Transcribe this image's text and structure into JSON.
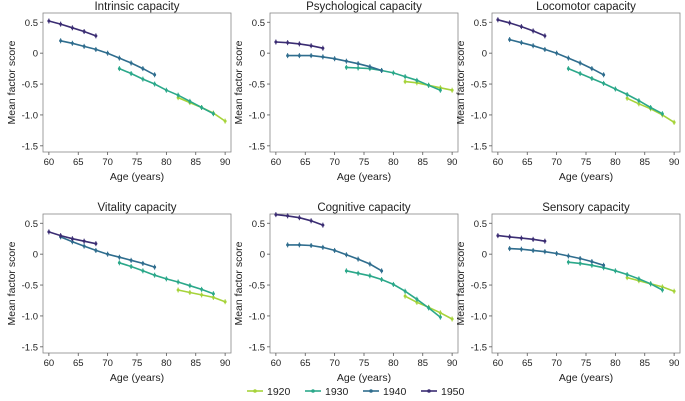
{
  "chart_data": {
    "type": "line",
    "xlabel": "Age (years)",
    "ylabel": "Mean factor score",
    "xlim": [
      59,
      91
    ],
    "ylim": [
      -1.6,
      0.65
    ],
    "xticks": [
      "60",
      "65",
      "70",
      "75",
      "80",
      "85",
      "90"
    ],
    "yticks": [
      "0.5",
      "0",
      "-0.5",
      "-1.0",
      "-1.5"
    ],
    "legend": {
      "position": "bottom",
      "entries": [
        {
          "name": "1920",
          "color": "#a6d33a"
        },
        {
          "name": "1930",
          "color": "#2ba88a"
        },
        {
          "name": "1940",
          "color": "#2f6d8e"
        },
        {
          "name": "1950",
          "color": "#3b2d73"
        }
      ]
    },
    "panels": [
      {
        "title": "Intrinsic capacity",
        "series": [
          {
            "name": "1920",
            "x": [
              82,
              84,
              86,
              88,
              90
            ],
            "y": [
              -0.72,
              -0.8,
              -0.88,
              -0.97,
              -1.1
            ]
          },
          {
            "name": "1930",
            "x": [
              72,
              74,
              76,
              78,
              80,
              82,
              84,
              86,
              88
            ],
            "y": [
              -0.25,
              -0.33,
              -0.42,
              -0.5,
              -0.6,
              -0.68,
              -0.78,
              -0.88,
              -0.98
            ]
          },
          {
            "name": "1940",
            "x": [
              62,
              64,
              66,
              68,
              70,
              72,
              74,
              76,
              78
            ],
            "y": [
              0.2,
              0.16,
              0.11,
              0.06,
              0.0,
              -0.08,
              -0.16,
              -0.25,
              -0.35
            ]
          },
          {
            "name": "1950",
            "x": [
              60,
              62,
              64,
              66,
              68
            ],
            "y": [
              0.52,
              0.47,
              0.41,
              0.35,
              0.28
            ]
          }
        ]
      },
      {
        "title": "Psychological capacity",
        "series": [
          {
            "name": "1920",
            "x": [
              82,
              84,
              86,
              88,
              90
            ],
            "y": [
              -0.46,
              -0.48,
              -0.52,
              -0.56,
              -0.6
            ]
          },
          {
            "name": "1930",
            "x": [
              72,
              74,
              76,
              78,
              80,
              82,
              84,
              86,
              88
            ],
            "y": [
              -0.23,
              -0.24,
              -0.25,
              -0.28,
              -0.32,
              -0.38,
              -0.44,
              -0.52,
              -0.6
            ]
          },
          {
            "name": "1940",
            "x": [
              62,
              64,
              66,
              68,
              70,
              72,
              74,
              76,
              78
            ],
            "y": [
              -0.04,
              -0.04,
              -0.04,
              -0.06,
              -0.09,
              -0.13,
              -0.17,
              -0.22,
              -0.28
            ]
          },
          {
            "name": "1950",
            "x": [
              60,
              62,
              64,
              66,
              68
            ],
            "y": [
              0.18,
              0.17,
              0.15,
              0.12,
              0.08
            ]
          }
        ]
      },
      {
        "title": "Locomotor capacity",
        "series": [
          {
            "name": "1920",
            "x": [
              82,
              84,
              86,
              88,
              90
            ],
            "y": [
              -0.73,
              -0.82,
              -0.9,
              -1.0,
              -1.12
            ]
          },
          {
            "name": "1930",
            "x": [
              72,
              74,
              76,
              78,
              80,
              82,
              84,
              86,
              88
            ],
            "y": [
              -0.25,
              -0.33,
              -0.41,
              -0.49,
              -0.58,
              -0.67,
              -0.77,
              -0.88,
              -0.98
            ]
          },
          {
            "name": "1940",
            "x": [
              62,
              64,
              66,
              68,
              70,
              72,
              74,
              76,
              78
            ],
            "y": [
              0.22,
              0.17,
              0.12,
              0.06,
              0.0,
              -0.08,
              -0.16,
              -0.25,
              -0.35
            ]
          },
          {
            "name": "1950",
            "x": [
              60,
              62,
              64,
              66,
              68
            ],
            "y": [
              0.54,
              0.49,
              0.43,
              0.36,
              0.28
            ]
          }
        ]
      },
      {
        "title": "Vitality capacity",
        "series": [
          {
            "name": "1920",
            "x": [
              82,
              84,
              86,
              88,
              90
            ],
            "y": [
              -0.58,
              -0.62,
              -0.66,
              -0.7,
              -0.77
            ]
          },
          {
            "name": "1930",
            "x": [
              72,
              74,
              76,
              78,
              80,
              82,
              84,
              86,
              88
            ],
            "y": [
              -0.14,
              -0.2,
              -0.27,
              -0.34,
              -0.4,
              -0.45,
              -0.51,
              -0.57,
              -0.64
            ]
          },
          {
            "name": "1940",
            "x": [
              62,
              64,
              66,
              68,
              70,
              72,
              74,
              76,
              78
            ],
            "y": [
              0.28,
              0.2,
              0.13,
              0.06,
              0.0,
              -0.05,
              -0.1,
              -0.15,
              -0.21
            ]
          },
          {
            "name": "1950",
            "x": [
              60,
              62,
              64,
              66,
              68
            ],
            "y": [
              0.36,
              0.3,
              0.25,
              0.21,
              0.17
            ]
          }
        ]
      },
      {
        "title": "Cognitive capacity",
        "series": [
          {
            "name": "1920",
            "x": [
              82,
              84,
              86,
              88,
              90
            ],
            "y": [
              -0.68,
              -0.78,
              -0.86,
              -0.95,
              -1.05
            ]
          },
          {
            "name": "1930",
            "x": [
              72,
              74,
              76,
              78,
              80,
              82,
              84,
              86,
              88
            ],
            "y": [
              -0.27,
              -0.31,
              -0.35,
              -0.41,
              -0.49,
              -0.6,
              -0.73,
              -0.87,
              -1.02
            ]
          },
          {
            "name": "1940",
            "x": [
              62,
              64,
              66,
              68,
              70,
              72,
              74,
              76,
              78
            ],
            "y": [
              0.15,
              0.15,
              0.14,
              0.11,
              0.06,
              -0.01,
              -0.08,
              -0.16,
              -0.27
            ]
          },
          {
            "name": "1950",
            "x": [
              60,
              62,
              64,
              66,
              68
            ],
            "y": [
              0.64,
              0.62,
              0.59,
              0.54,
              0.47
            ]
          }
        ]
      },
      {
        "title": "Sensory capacity",
        "series": [
          {
            "name": "1920",
            "x": [
              82,
              84,
              86,
              88,
              90
            ],
            "y": [
              -0.38,
              -0.43,
              -0.48,
              -0.53,
              -0.6
            ]
          },
          {
            "name": "1930",
            "x": [
              72,
              74,
              76,
              78,
              80,
              82,
              84,
              86,
              88
            ],
            "y": [
              -0.13,
              -0.15,
              -0.18,
              -0.22,
              -0.27,
              -0.33,
              -0.4,
              -0.48,
              -0.58
            ]
          },
          {
            "name": "1940",
            "x": [
              62,
              64,
              66,
              68,
              70,
              72,
              74,
              76,
              78
            ],
            "y": [
              0.09,
              0.08,
              0.06,
              0.04,
              0.01,
              -0.03,
              -0.07,
              -0.12,
              -0.18
            ]
          },
          {
            "name": "1950",
            "x": [
              60,
              62,
              64,
              66,
              68
            ],
            "y": [
              0.3,
              0.28,
              0.26,
              0.24,
              0.21
            ]
          }
        ]
      }
    ]
  }
}
